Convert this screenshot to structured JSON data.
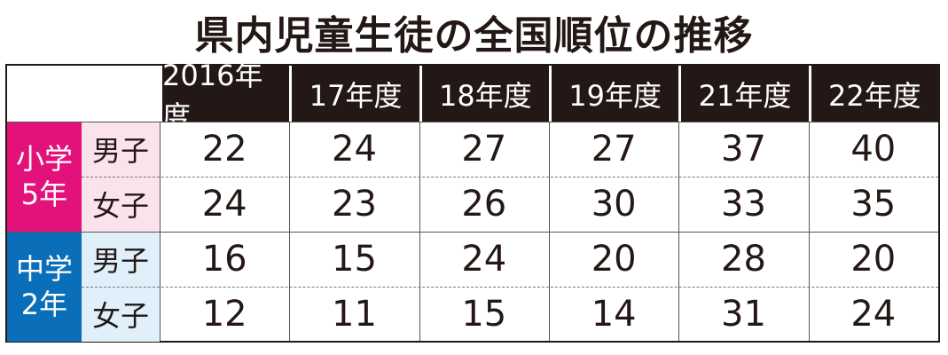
{
  "title": "県内児童生徒の全国順位の推移",
  "colors": {
    "elementary": "#e2127a",
    "elementary_light": "#fbe3ee",
    "junior": "#0a6fb8",
    "junior_light": "#dff0fa",
    "header": "#231815"
  },
  "chart_data": {
    "type": "table",
    "columns": [
      "2016年度",
      "17年度",
      "18年度",
      "19年度",
      "21年度",
      "22年度"
    ],
    "groups": [
      {
        "label": "小学\n5年",
        "rows": [
          {
            "label": "男子",
            "values": [
              22,
              24,
              27,
              27,
              37,
              40
            ]
          },
          {
            "label": "女子",
            "values": [
              24,
              23,
              26,
              30,
              33,
              35
            ]
          }
        ]
      },
      {
        "label": "中学\n2年",
        "rows": [
          {
            "label": "男子",
            "values": [
              16,
              15,
              24,
              20,
              28,
              20
            ]
          },
          {
            "label": "女子",
            "values": [
              12,
              11,
              15,
              14,
              31,
              24
            ]
          }
        ]
      }
    ]
  }
}
